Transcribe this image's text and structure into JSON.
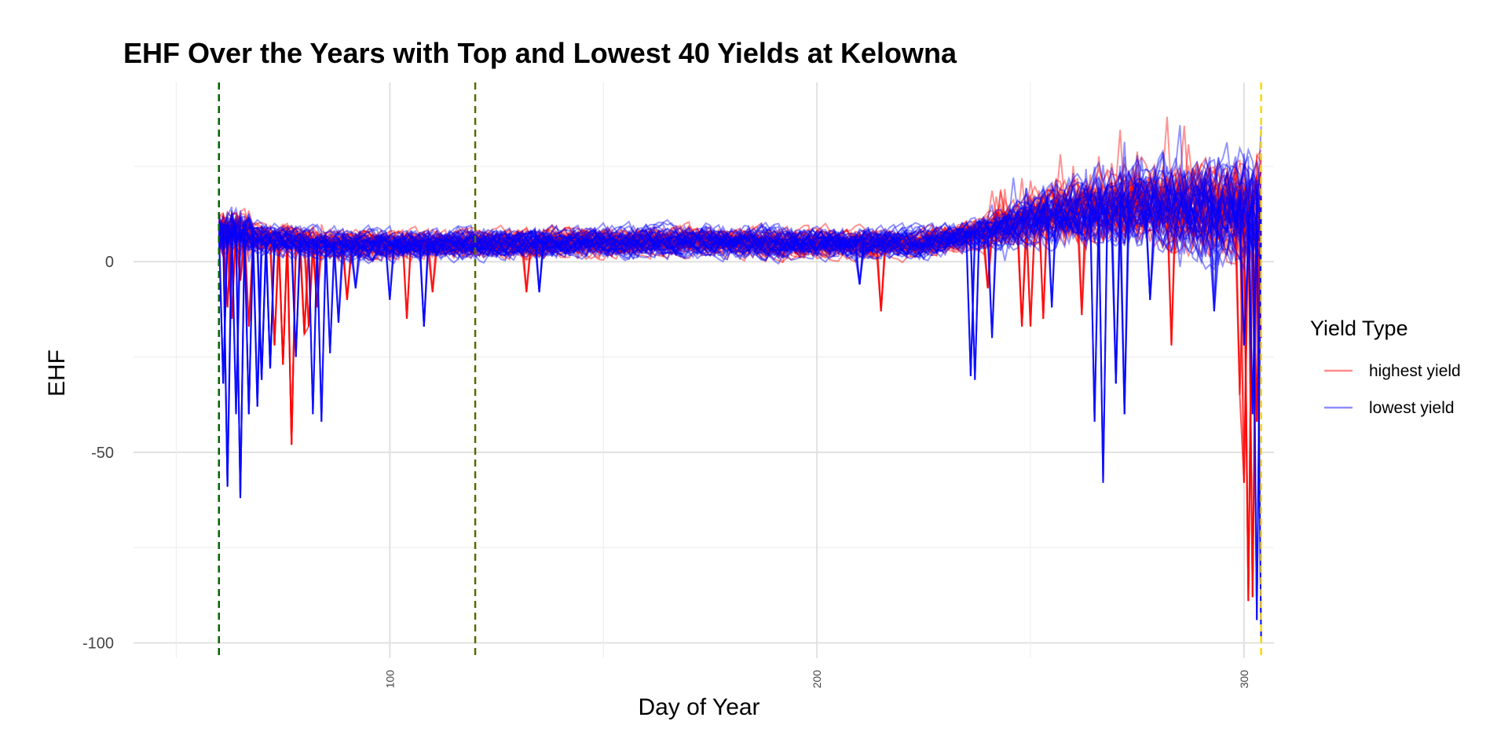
{
  "chart_data": {
    "type": "line",
    "title": "EHF Over the Years with Top and Lowest 40  Yields at Kelowna",
    "xlabel": "Day of Year",
    "ylabel": "EHF",
    "xlim": [
      40,
      307
    ],
    "ylim": [
      -104,
      47
    ],
    "x_ticks": [
      100,
      200,
      300
    ],
    "y_ticks": [
      0,
      -50,
      -100
    ],
    "grid": true,
    "legend": {
      "title": "Yield Type",
      "position": "right",
      "entries": [
        {
          "label": "highest yield",
          "color": "#ff0000"
        },
        {
          "label": "lowest yield",
          "color": "#0000ff"
        }
      ]
    },
    "vertical_lines": [
      {
        "x": 60,
        "color": "#006400",
        "style": "dashed"
      },
      {
        "x": 120,
        "color": "#556b00",
        "style": "dashed"
      },
      {
        "x": 304,
        "color": "#ffd700",
        "style": "dashed"
      }
    ],
    "day_range": [
      60,
      304
    ],
    "series_count_per_group": 40,
    "baseline_profile": [
      [
        60,
        7
      ],
      [
        90,
        4.5
      ],
      [
        130,
        5
      ],
      [
        170,
        5.5
      ],
      [
        200,
        5
      ],
      [
        225,
        5
      ],
      [
        240,
        8
      ],
      [
        255,
        13
      ],
      [
        275,
        15
      ],
      [
        304,
        14
      ]
    ],
    "spikes": {
      "highest yield": [
        [
          61,
          1.5
        ],
        [
          62,
          -12
        ],
        [
          63,
          -15
        ],
        [
          65,
          -5
        ],
        [
          67,
          -17
        ],
        [
          73,
          -22
        ],
        [
          75,
          -27
        ],
        [
          77,
          -48
        ],
        [
          80,
          -19
        ],
        [
          81,
          -17
        ],
        [
          83,
          -12
        ],
        [
          90,
          -10
        ],
        [
          104,
          -15
        ],
        [
          110,
          -8
        ],
        [
          132,
          -8
        ],
        [
          215,
          -13
        ],
        [
          240,
          -7
        ],
        [
          248,
          -17
        ],
        [
          250,
          -17
        ],
        [
          253,
          -15
        ],
        [
          262,
          -14
        ],
        [
          283,
          -22
        ],
        [
          299,
          -35
        ],
        [
          300,
          -58
        ],
        [
          301,
          -89
        ],
        [
          302,
          -88
        ],
        [
          303,
          -42
        ],
        [
          304,
          -20
        ]
      ],
      "lowest yield": [
        [
          61,
          -32
        ],
        [
          62,
          -59
        ],
        [
          64,
          -40
        ],
        [
          65,
          -62
        ],
        [
          67,
          -40
        ],
        [
          69,
          -38
        ],
        [
          70,
          -31
        ],
        [
          72,
          -28
        ],
        [
          78,
          -25
        ],
        [
          82,
          -40
        ],
        [
          84,
          -42
        ],
        [
          86,
          -24
        ],
        [
          88,
          -16
        ],
        [
          92,
          -7
        ],
        [
          100,
          -10
        ],
        [
          108,
          -17
        ],
        [
          135,
          -8
        ],
        [
          210,
          -6
        ],
        [
          236,
          -30
        ],
        [
          237,
          -31
        ],
        [
          241,
          -20
        ],
        [
          255,
          -12
        ],
        [
          265,
          -42
        ],
        [
          267,
          -58
        ],
        [
          270,
          -32
        ],
        [
          272,
          -40
        ],
        [
          278,
          -10
        ],
        [
          293,
          -13
        ],
        [
          300,
          -22
        ],
        [
          302,
          -40
        ],
        [
          303,
          -94
        ],
        [
          304,
          -100
        ]
      ]
    }
  }
}
